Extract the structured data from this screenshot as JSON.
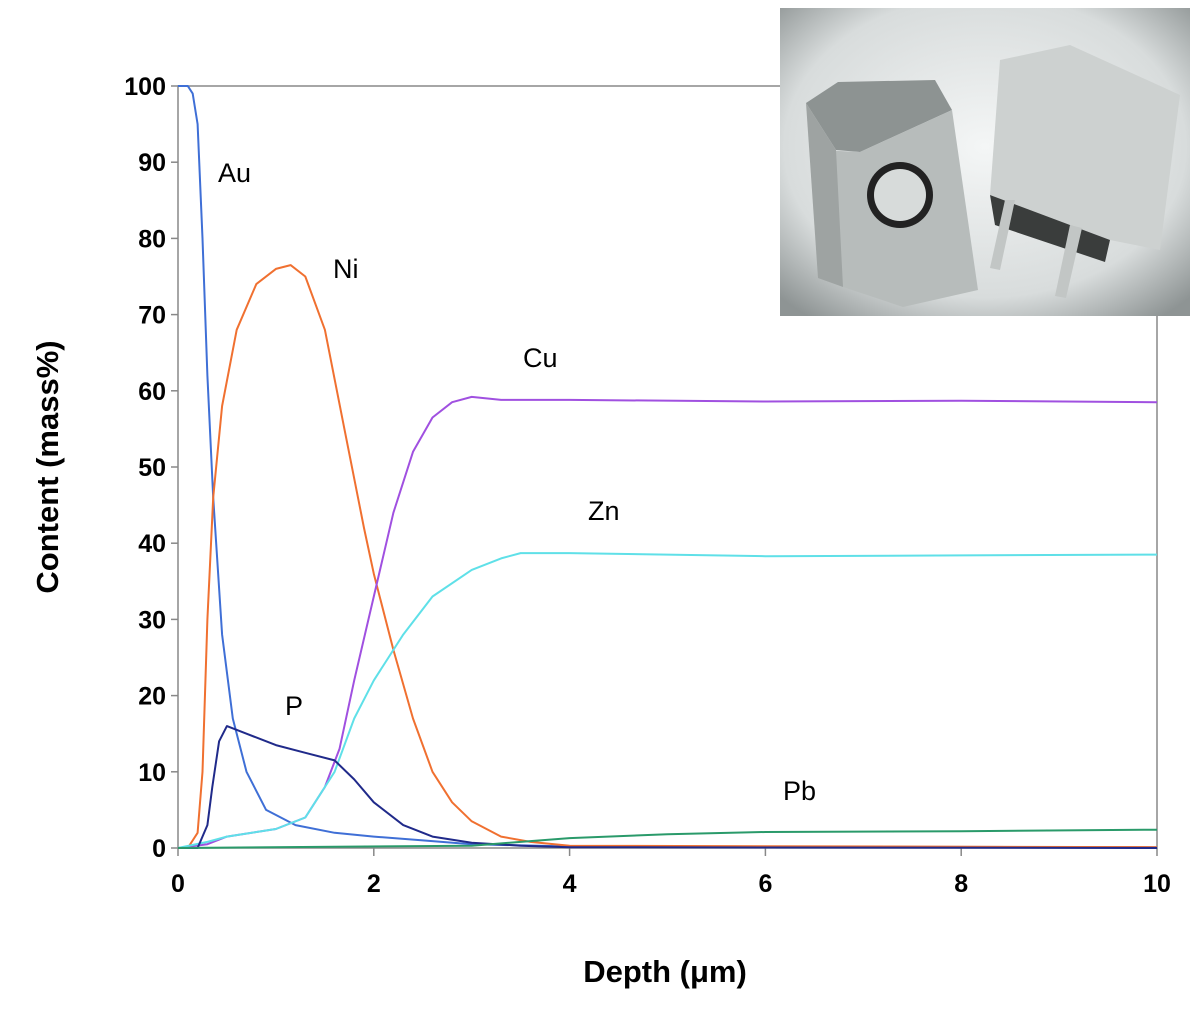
{
  "chart_data": {
    "type": "line",
    "title": "",
    "xlabel": "Depth (μm)",
    "ylabel": "Content (mass%)",
    "xlim": [
      0,
      10
    ],
    "ylim": [
      0,
      100
    ],
    "xticks": [
      "0",
      "2",
      "4",
      "6",
      "8",
      "10"
    ],
    "yticks": [
      "0",
      "10",
      "20",
      "30",
      "40",
      "50",
      "60",
      "70",
      "80",
      "90",
      "100"
    ],
    "grid": false,
    "legend": "none (inline labels)",
    "series": [
      {
        "name": "Au",
        "color": "#3f6fd6",
        "x": [
          0,
          0.1,
          0.15,
          0.2,
          0.25,
          0.3,
          0.36,
          0.45,
          0.56,
          0.7,
          0.9,
          1.2,
          1.6,
          2,
          2.5,
          3,
          4,
          10
        ],
        "y": [
          100,
          100,
          99,
          95,
          80,
          62,
          46,
          28,
          17,
          10,
          5,
          3,
          2,
          1.5,
          1,
          0.5,
          0.2,
          0.1
        ]
      },
      {
        "name": "Ni",
        "color": "#f07030",
        "x": [
          0,
          0.1,
          0.2,
          0.25,
          0.3,
          0.36,
          0.45,
          0.6,
          0.8,
          1.0,
          1.15,
          1.3,
          1.5,
          1.7,
          1.9,
          2.0,
          2.2,
          2.4,
          2.6,
          2.8,
          3.0,
          3.3,
          3.6,
          4,
          10
        ],
        "y": [
          0,
          0,
          2,
          10,
          30,
          46,
          58,
          68,
          74,
          76,
          76.5,
          75,
          68,
          55,
          42,
          36,
          26,
          17,
          10,
          6,
          3.5,
          1.5,
          0.8,
          0.3,
          0.1
        ]
      },
      {
        "name": "Cu",
        "color": "#a050e0",
        "x": [
          0,
          0.3,
          0.5,
          1.0,
          1.3,
          1.5,
          1.65,
          1.8,
          2.0,
          2.2,
          2.4,
          2.6,
          2.8,
          3.0,
          3.3,
          4,
          6,
          8,
          10
        ],
        "y": [
          0,
          0.5,
          1.5,
          2.5,
          4,
          8,
          13,
          22,
          33,
          44,
          52,
          56.5,
          58.5,
          59.2,
          58.8,
          58.8,
          58.6,
          58.7,
          58.5
        ]
      },
      {
        "name": "Zn",
        "color": "#5fe0e8",
        "x": [
          0,
          0.3,
          0.5,
          1.0,
          1.3,
          1.6,
          1.8,
          2.0,
          2.3,
          2.6,
          3.0,
          3.3,
          3.5,
          4,
          6,
          8,
          10
        ],
        "y": [
          0,
          0.8,
          1.5,
          2.5,
          4,
          10,
          17,
          22,
          28,
          33,
          36.5,
          38,
          38.7,
          38.7,
          38.3,
          38.4,
          38.5
        ]
      },
      {
        "name": "P",
        "color": "#202a8a",
        "x": [
          0,
          0.2,
          0.3,
          0.35,
          0.42,
          0.5,
          0.7,
          1.0,
          1.3,
          1.6,
          1.8,
          2.0,
          2.3,
          2.6,
          3,
          3.5,
          4,
          10
        ],
        "y": [
          0,
          0,
          3,
          8,
          14,
          16,
          15,
          13.5,
          12.5,
          11.5,
          9,
          6,
          3,
          1.5,
          0.7,
          0.3,
          0.1,
          0
        ]
      },
      {
        "name": "Pb",
        "color": "#2a9a6a",
        "x": [
          0,
          3,
          3.5,
          4,
          5,
          6,
          8,
          10
        ],
        "y": [
          0,
          0.3,
          0.8,
          1.3,
          1.8,
          2.1,
          2.2,
          2.4
        ]
      }
    ]
  }
}
